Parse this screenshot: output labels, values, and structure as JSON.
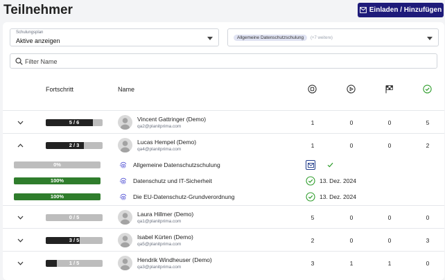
{
  "header": {
    "title": "Teilnehmer",
    "invite_label": "Einladen / Hinzufügen"
  },
  "filters": {
    "plan_label": "Schulungsplan",
    "plan_value": "Aktive anzeigen",
    "course_chip": "Allgemeine Datenschutzschulung",
    "course_more": "(+7 weitere)",
    "search_placeholder": "Filter Name"
  },
  "columns": {
    "progress": "Fortschritt",
    "name": "Name",
    "icons": [
      "stop-circle-icon",
      "play-circle-icon",
      "checkered-flag-icon",
      "check-circle-icon"
    ]
  },
  "colors": {
    "accent": "#1e1b7a",
    "complete": "#2f7d2c",
    "progress": "#222222",
    "track": "#bdbdbd"
  },
  "participants": [
    {
      "name": "Vincent Gattringer (Demo)",
      "email": "qa2@planitprima.com",
      "progress": "5 / 6",
      "fraction": 0.833,
      "counts": [
        "1",
        "0",
        "0",
        "5"
      ],
      "expanded": false
    },
    {
      "name": "Lucas Hempel (Demo)",
      "email": "qa4@planitprima.com",
      "progress": "2 / 3",
      "fraction": 0.667,
      "counts": [
        "1",
        "0",
        "0",
        "2"
      ],
      "expanded": true
    },
    {
      "name": "Laura Hillmer (Demo)",
      "email": "qa1@planitprima.com",
      "progress": "0 / 5",
      "fraction": 0,
      "counts": [
        "5",
        "0",
        "0",
        "0"
      ],
      "expanded": false
    },
    {
      "name": "Isabel Kürten (Demo)",
      "email": "qa5@planitprima.com",
      "progress": "3 / 5",
      "fraction": 0.6,
      "counts": [
        "2",
        "0",
        "0",
        "3"
      ],
      "expanded": false
    },
    {
      "name": "Hendrik Windheuser (Demo)",
      "email": "qa3@planitprima.com",
      "progress": "1 / 5",
      "fraction": 0.2,
      "counts": [
        "3",
        "1",
        "1",
        "0"
      ],
      "expanded": false
    }
  ],
  "courses": [
    {
      "progress": "0%",
      "fraction": 0,
      "name": "Allgemeine Datenschutzschulung",
      "status": "invited",
      "date": ""
    },
    {
      "progress": "100%",
      "fraction": 1,
      "name": "Datenschutz und IT-Sicherheit",
      "status": "completed",
      "date": "13. Dez. 2024"
    },
    {
      "progress": "100%",
      "fraction": 1,
      "name": "Die EU-Datenschutz-Grundverordnung",
      "status": "completed",
      "date": "13. Dez. 2024"
    }
  ]
}
